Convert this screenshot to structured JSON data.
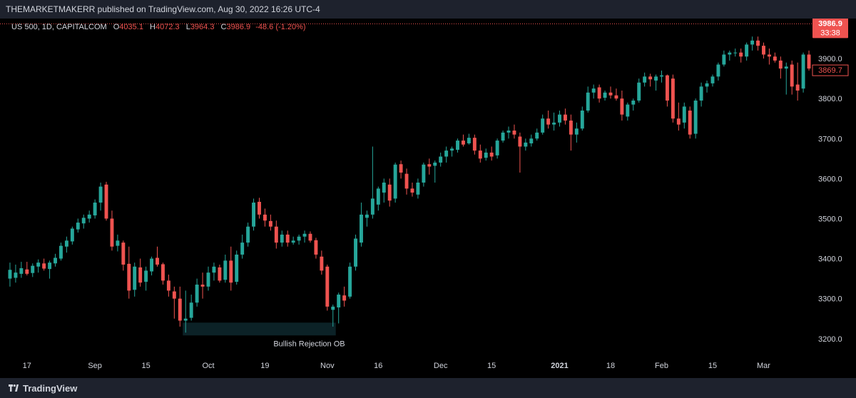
{
  "header": {
    "publisher_line": "THEMARKETMAKERR published on TradingView.com, Aug 30, 2022 16:26 UTC-4"
  },
  "legend": {
    "symbol": "US 500, 1D, CAPITALCOM",
    "open_label": "O",
    "open": "4035.1",
    "high_label": "H",
    "high": "4072.3",
    "low_label": "L",
    "low": "3964.3",
    "close_label": "C",
    "close": "3986.9",
    "change": "-48.6 (-1.20%)"
  },
  "footer": {
    "brand": "TradingView"
  },
  "colors": {
    "up": "#26a69a",
    "down": "#ef5350",
    "background": "#000000",
    "panel": "#1e222d",
    "axis_text": "#d1d4dc",
    "ob_zone": "#0c2227"
  },
  "chart_data": {
    "type": "candlestick",
    "currency": "USD",
    "y_ticks": [
      3200.0,
      3300.0,
      3400.0,
      3500.0,
      3600.0,
      3700.0,
      3800.0,
      3900.0
    ],
    "y_tick_labels": [
      "3200.0",
      "3300.0",
      "3400.0",
      "3500.0",
      "3600.0",
      "3700.0",
      "3800.0",
      "3900.0"
    ],
    "ylim": [
      3155,
      4000
    ],
    "x_tick_labels": [
      "17",
      "Sep",
      "15",
      "Oct",
      "19",
      "Nov",
      "16",
      "Dec",
      "15",
      "2021",
      "18",
      "Feb",
      "15",
      "Mar"
    ],
    "x_tick_index": [
      3,
      15,
      24,
      35,
      45,
      56,
      65,
      76,
      85,
      97,
      106,
      115,
      124,
      133
    ],
    "x_tick_bold": [
      "2021"
    ],
    "last_price": {
      "value": 3986.9,
      "label": "3986.9",
      "countdown": "33:38"
    },
    "secondary_price": {
      "value": 3869.7,
      "label": "3869.7"
    },
    "annotation": {
      "text": "Bullish Rejection OB",
      "from_index": 31,
      "to_index": 57,
      "top": 3240,
      "bottom": 3208
    },
    "candles": [
      {
        "o": 3350,
        "h": 3390,
        "l": 3330,
        "c": 3372
      },
      {
        "o": 3352,
        "h": 3385,
        "l": 3340,
        "c": 3365
      },
      {
        "o": 3362,
        "h": 3392,
        "l": 3352,
        "c": 3376
      },
      {
        "o": 3373,
        "h": 3392,
        "l": 3358,
        "c": 3362
      },
      {
        "o": 3364,
        "h": 3388,
        "l": 3354,
        "c": 3382
      },
      {
        "o": 3380,
        "h": 3398,
        "l": 3365,
        "c": 3390
      },
      {
        "o": 3388,
        "h": 3400,
        "l": 3370,
        "c": 3375
      },
      {
        "o": 3374,
        "h": 3395,
        "l": 3350,
        "c": 3390
      },
      {
        "o": 3388,
        "h": 3412,
        "l": 3380,
        "c": 3402
      },
      {
        "o": 3400,
        "h": 3440,
        "l": 3395,
        "c": 3432
      },
      {
        "o": 3430,
        "h": 3455,
        "l": 3415,
        "c": 3445
      },
      {
        "o": 3443,
        "h": 3480,
        "l": 3435,
        "c": 3475
      },
      {
        "o": 3473,
        "h": 3500,
        "l": 3465,
        "c": 3490
      },
      {
        "o": 3488,
        "h": 3510,
        "l": 3475,
        "c": 3502
      },
      {
        "o": 3500,
        "h": 3520,
        "l": 3490,
        "c": 3510
      },
      {
        "o": 3508,
        "h": 3548,
        "l": 3500,
        "c": 3540
      },
      {
        "o": 3540,
        "h": 3590,
        "l": 3520,
        "c": 3580
      },
      {
        "o": 3585,
        "h": 3592,
        "l": 3495,
        "c": 3500
      },
      {
        "o": 3500,
        "h": 3520,
        "l": 3420,
        "c": 3430
      },
      {
        "o": 3432,
        "h": 3460,
        "l": 3418,
        "c": 3445
      },
      {
        "o": 3440,
        "h": 3445,
        "l": 3370,
        "c": 3385
      },
      {
        "o": 3387,
        "h": 3430,
        "l": 3300,
        "c": 3320
      },
      {
        "o": 3322,
        "h": 3390,
        "l": 3305,
        "c": 3380
      },
      {
        "o": 3378,
        "h": 3400,
        "l": 3330,
        "c": 3340
      },
      {
        "o": 3342,
        "h": 3380,
        "l": 3320,
        "c": 3370
      },
      {
        "o": 3368,
        "h": 3405,
        "l": 3358,
        "c": 3400
      },
      {
        "o": 3402,
        "h": 3430,
        "l": 3380,
        "c": 3385
      },
      {
        "o": 3386,
        "h": 3390,
        "l": 3335,
        "c": 3345
      },
      {
        "o": 3345,
        "h": 3360,
        "l": 3305,
        "c": 3320
      },
      {
        "o": 3318,
        "h": 3330,
        "l": 3250,
        "c": 3300
      },
      {
        "o": 3300,
        "h": 3330,
        "l": 3230,
        "c": 3245
      },
      {
        "o": 3245,
        "h": 3320,
        "l": 3215,
        "c": 3250
      },
      {
        "o": 3252,
        "h": 3310,
        "l": 3245,
        "c": 3290
      },
      {
        "o": 3290,
        "h": 3350,
        "l": 3280,
        "c": 3335
      },
      {
        "o": 3335,
        "h": 3365,
        "l": 3300,
        "c": 3330
      },
      {
        "o": 3330,
        "h": 3380,
        "l": 3320,
        "c": 3365
      },
      {
        "o": 3365,
        "h": 3390,
        "l": 3345,
        "c": 3380
      },
      {
        "o": 3378,
        "h": 3385,
        "l": 3340,
        "c": 3345
      },
      {
        "o": 3347,
        "h": 3410,
        "l": 3340,
        "c": 3395
      },
      {
        "o": 3395,
        "h": 3430,
        "l": 3320,
        "c": 3340
      },
      {
        "o": 3342,
        "h": 3420,
        "l": 3335,
        "c": 3410
      },
      {
        "o": 3410,
        "h": 3460,
        "l": 3400,
        "c": 3440
      },
      {
        "o": 3440,
        "h": 3490,
        "l": 3430,
        "c": 3480
      },
      {
        "o": 3480,
        "h": 3550,
        "l": 3470,
        "c": 3540
      },
      {
        "o": 3542,
        "h": 3552,
        "l": 3500,
        "c": 3510
      },
      {
        "o": 3510,
        "h": 3525,
        "l": 3480,
        "c": 3495
      },
      {
        "o": 3494,
        "h": 3510,
        "l": 3470,
        "c": 3480
      },
      {
        "o": 3480,
        "h": 3495,
        "l": 3425,
        "c": 3440
      },
      {
        "o": 3440,
        "h": 3470,
        "l": 3430,
        "c": 3460
      },
      {
        "o": 3460,
        "h": 3470,
        "l": 3430,
        "c": 3440
      },
      {
        "o": 3440,
        "h": 3455,
        "l": 3435,
        "c": 3445
      },
      {
        "o": 3445,
        "h": 3460,
        "l": 3435,
        "c": 3455
      },
      {
        "o": 3455,
        "h": 3470,
        "l": 3440,
        "c": 3462
      },
      {
        "o": 3462,
        "h": 3468,
        "l": 3440,
        "c": 3445
      },
      {
        "o": 3446,
        "h": 3452,
        "l": 3400,
        "c": 3410
      },
      {
        "o": 3405,
        "h": 3420,
        "l": 3360,
        "c": 3370
      },
      {
        "o": 3380,
        "h": 3385,
        "l": 3270,
        "c": 3280
      },
      {
        "o": 3272,
        "h": 3285,
        "l": 3230,
        "c": 3280
      },
      {
        "o": 3278,
        "h": 3315,
        "l": 3238,
        "c": 3310
      },
      {
        "o": 3308,
        "h": 3330,
        "l": 3280,
        "c": 3295
      },
      {
        "o": 3305,
        "h": 3390,
        "l": 3300,
        "c": 3380
      },
      {
        "o": 3380,
        "h": 3460,
        "l": 3370,
        "c": 3450
      },
      {
        "o": 3440,
        "h": 3540,
        "l": 3430,
        "c": 3510
      },
      {
        "o": 3502,
        "h": 3520,
        "l": 3480,
        "c": 3510
      },
      {
        "o": 3510,
        "h": 3680,
        "l": 3500,
        "c": 3550
      },
      {
        "o": 3535,
        "h": 3580,
        "l": 3520,
        "c": 3575
      },
      {
        "o": 3565,
        "h": 3600,
        "l": 3540,
        "c": 3590
      },
      {
        "o": 3585,
        "h": 3600,
        "l": 3530,
        "c": 3545
      },
      {
        "o": 3550,
        "h": 3640,
        "l": 3540,
        "c": 3635
      },
      {
        "o": 3636,
        "h": 3645,
        "l": 3600,
        "c": 3615
      },
      {
        "o": 3612,
        "h": 3625,
        "l": 3560,
        "c": 3575
      },
      {
        "o": 3575,
        "h": 3590,
        "l": 3555,
        "c": 3565
      },
      {
        "o": 3560,
        "h": 3600,
        "l": 3550,
        "c": 3590
      },
      {
        "o": 3590,
        "h": 3640,
        "l": 3580,
        "c": 3635
      },
      {
        "o": 3636,
        "h": 3650,
        "l": 3610,
        "c": 3630
      },
      {
        "o": 3632,
        "h": 3645,
        "l": 3590,
        "c": 3640
      },
      {
        "o": 3640,
        "h": 3665,
        "l": 3630,
        "c": 3655
      },
      {
        "o": 3655,
        "h": 3680,
        "l": 3640,
        "c": 3670
      },
      {
        "o": 3670,
        "h": 3680,
        "l": 3655,
        "c": 3675
      },
      {
        "o": 3672,
        "h": 3700,
        "l": 3665,
        "c": 3695
      },
      {
        "o": 3695,
        "h": 3710,
        "l": 3680,
        "c": 3685
      },
      {
        "o": 3688,
        "h": 3712,
        "l": 3685,
        "c": 3702
      },
      {
        "o": 3702,
        "h": 3710,
        "l": 3660,
        "c": 3670
      },
      {
        "o": 3670,
        "h": 3685,
        "l": 3640,
        "c": 3650
      },
      {
        "o": 3652,
        "h": 3675,
        "l": 3645,
        "c": 3665
      },
      {
        "o": 3665,
        "h": 3680,
        "l": 3645,
        "c": 3655
      },
      {
        "o": 3658,
        "h": 3700,
        "l": 3650,
        "c": 3695
      },
      {
        "o": 3695,
        "h": 3720,
        "l": 3690,
        "c": 3715
      },
      {
        "o": 3715,
        "h": 3730,
        "l": 3700,
        "c": 3720
      },
      {
        "o": 3720,
        "h": 3735,
        "l": 3700,
        "c": 3710
      },
      {
        "o": 3705,
        "h": 3715,
        "l": 3615,
        "c": 3680
      },
      {
        "o": 3680,
        "h": 3700,
        "l": 3670,
        "c": 3690
      },
      {
        "o": 3688,
        "h": 3710,
        "l": 3680,
        "c": 3700
      },
      {
        "o": 3700,
        "h": 3725,
        "l": 3695,
        "c": 3715
      },
      {
        "o": 3715,
        "h": 3760,
        "l": 3710,
        "c": 3750
      },
      {
        "o": 3750,
        "h": 3770,
        "l": 3725,
        "c": 3735
      },
      {
        "o": 3735,
        "h": 3765,
        "l": 3720,
        "c": 3740
      },
      {
        "o": 3740,
        "h": 3770,
        "l": 3730,
        "c": 3760
      },
      {
        "o": 3760,
        "h": 3775,
        "l": 3735,
        "c": 3745
      },
      {
        "o": 3745,
        "h": 3760,
        "l": 3670,
        "c": 3710
      },
      {
        "o": 3710,
        "h": 3740,
        "l": 3690,
        "c": 3725
      },
      {
        "o": 3725,
        "h": 3780,
        "l": 3720,
        "c": 3770
      },
      {
        "o": 3770,
        "h": 3830,
        "l": 3765,
        "c": 3815
      },
      {
        "o": 3815,
        "h": 3835,
        "l": 3800,
        "c": 3825
      },
      {
        "o": 3828,
        "h": 3835,
        "l": 3790,
        "c": 3800
      },
      {
        "o": 3802,
        "h": 3820,
        "l": 3795,
        "c": 3815
      },
      {
        "o": 3815,
        "h": 3830,
        "l": 3800,
        "c": 3808
      },
      {
        "o": 3808,
        "h": 3825,
        "l": 3795,
        "c": 3800
      },
      {
        "o": 3800,
        "h": 3820,
        "l": 3745,
        "c": 3760
      },
      {
        "o": 3755,
        "h": 3790,
        "l": 3745,
        "c": 3785
      },
      {
        "o": 3785,
        "h": 3800,
        "l": 3770,
        "c": 3795
      },
      {
        "o": 3795,
        "h": 3850,
        "l": 3790,
        "c": 3840
      },
      {
        "o": 3840,
        "h": 3865,
        "l": 3830,
        "c": 3855
      },
      {
        "o": 3855,
        "h": 3862,
        "l": 3830,
        "c": 3848
      },
      {
        "o": 3845,
        "h": 3860,
        "l": 3820,
        "c": 3855
      },
      {
        "o": 3855,
        "h": 3870,
        "l": 3840,
        "c": 3858
      },
      {
        "o": 3858,
        "h": 3860,
        "l": 3780,
        "c": 3795
      },
      {
        "o": 3850,
        "h": 3860,
        "l": 3740,
        "c": 3750
      },
      {
        "o": 3750,
        "h": 3790,
        "l": 3720,
        "c": 3735
      },
      {
        "o": 3740,
        "h": 3790,
        "l": 3725,
        "c": 3780
      },
      {
        "o": 3770,
        "h": 3780,
        "l": 3700,
        "c": 3710
      },
      {
        "o": 3712,
        "h": 3800,
        "l": 3700,
        "c": 3795
      },
      {
        "o": 3795,
        "h": 3840,
        "l": 3780,
        "c": 3830
      },
      {
        "o": 3830,
        "h": 3845,
        "l": 3815,
        "c": 3838
      },
      {
        "o": 3838,
        "h": 3860,
        "l": 3830,
        "c": 3855
      },
      {
        "o": 3855,
        "h": 3890,
        "l": 3845,
        "c": 3885
      },
      {
        "o": 3885,
        "h": 3920,
        "l": 3880,
        "c": 3910
      },
      {
        "o": 3910,
        "h": 3920,
        "l": 3895,
        "c": 3915
      },
      {
        "o": 3915,
        "h": 3925,
        "l": 3905,
        "c": 3915
      },
      {
        "o": 3915,
        "h": 3925,
        "l": 3890,
        "c": 3905
      },
      {
        "o": 3905,
        "h": 3940,
        "l": 3895,
        "c": 3935
      },
      {
        "o": 3935,
        "h": 3955,
        "l": 3920,
        "c": 3945
      },
      {
        "o": 3945,
        "h": 3955,
        "l": 3920,
        "c": 3932
      },
      {
        "o": 3932,
        "h": 3940,
        "l": 3900,
        "c": 3910
      },
      {
        "o": 3910,
        "h": 3925,
        "l": 3885,
        "c": 3905
      },
      {
        "o": 3905,
        "h": 3915,
        "l": 3890,
        "c": 3895
      },
      {
        "o": 3895,
        "h": 3905,
        "l": 3850,
        "c": 3875
      },
      {
        "o": 3875,
        "h": 3890,
        "l": 3810,
        "c": 3880
      },
      {
        "o": 3885,
        "h": 3895,
        "l": 3810,
        "c": 3830
      },
      {
        "o": 3835,
        "h": 3890,
        "l": 3795,
        "c": 3820
      },
      {
        "o": 3825,
        "h": 3915,
        "l": 3815,
        "c": 3910
      },
      {
        "o": 3910,
        "h": 3920,
        "l": 3870,
        "c": 3875
      }
    ]
  }
}
